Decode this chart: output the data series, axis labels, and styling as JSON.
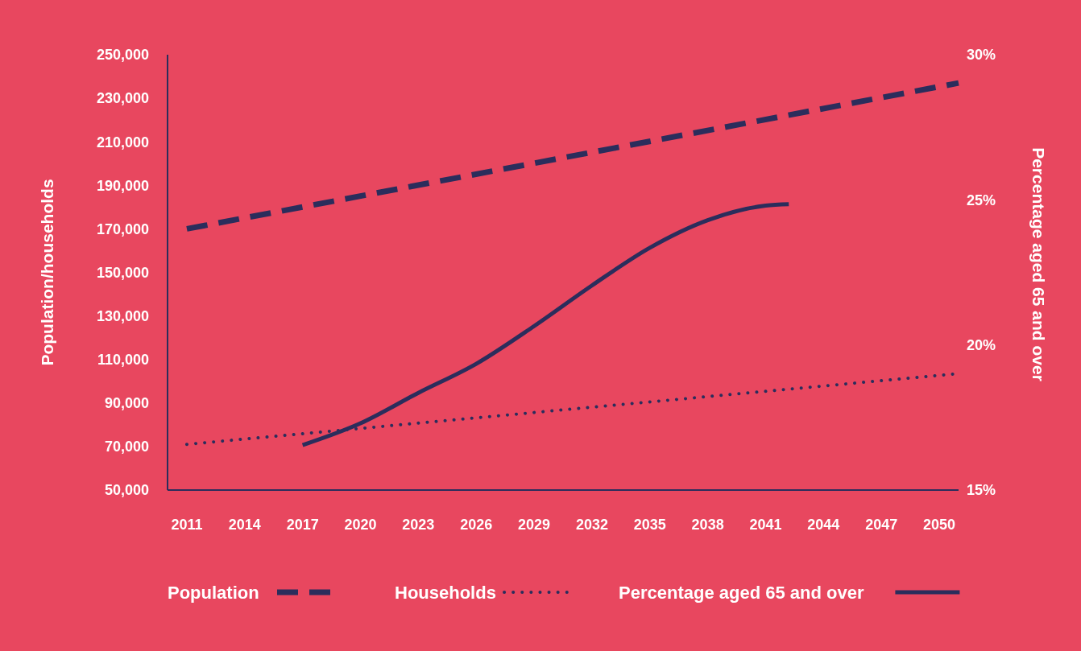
{
  "chart_data": {
    "type": "line",
    "xlabel": null,
    "ylabel": "Population/households",
    "y2label": "Percentage aged 65 and over",
    "xlim": [
      2010,
      2051
    ],
    "xticks": [
      2011,
      2014,
      2017,
      2020,
      2023,
      2026,
      2029,
      2032,
      2035,
      2038,
      2041,
      2044,
      2047,
      2050
    ],
    "ylim": [
      50000,
      250000
    ],
    "yticks": [
      {
        "value": 50000,
        "label": "50,000"
      },
      {
        "value": 70000,
        "label": "70,000"
      },
      {
        "value": 90000,
        "label": "90,000"
      },
      {
        "value": 110000,
        "label": "110,000"
      },
      {
        "value": 130000,
        "label": "130,000"
      },
      {
        "value": 150000,
        "label": "150,000"
      },
      {
        "value": 170000,
        "label": "170,000"
      },
      {
        "value": 190000,
        "label": "190,000"
      },
      {
        "value": 210000,
        "label": "210,000"
      },
      {
        "value": 230000,
        "label": "230,000"
      },
      {
        "value": 250000,
        "label": "250,000"
      }
    ],
    "y2lim": [
      15,
      30
    ],
    "y2ticks": [
      {
        "value": 15,
        "label": "15%"
      },
      {
        "value": 20,
        "label": "20%"
      },
      {
        "value": 25,
        "label": "25%"
      },
      {
        "value": 30,
        "label": "30%"
      }
    ],
    "grid": false,
    "legend": "bottom",
    "marker": "none",
    "series": [
      {
        "name": "Population",
        "color": "#2b2d5c",
        "line_style": "dashed",
        "x": [
          2011,
          2051
        ],
        "values": [
          170000,
          237000
        ]
      },
      {
        "name": "Households",
        "color": "#2b2d5c",
        "line_style": "dotted",
        "x": [
          2011,
          2051
        ],
        "values": [
          71000,
          103500
        ]
      },
      {
        "name": "Percentage aged 65 and over",
        "color": "#2b2d5c",
        "line_style": "solid",
        "axis": "y2",
        "x": [
          2017,
          2020,
          2023,
          2026,
          2029,
          2032,
          2035,
          2038,
          2041,
          2042.2
        ],
        "values": [
          16.55,
          17.3,
          18.35,
          19.35,
          20.65,
          22.05,
          23.35,
          24.3,
          24.8,
          24.85
        ]
      }
    ]
  }
}
